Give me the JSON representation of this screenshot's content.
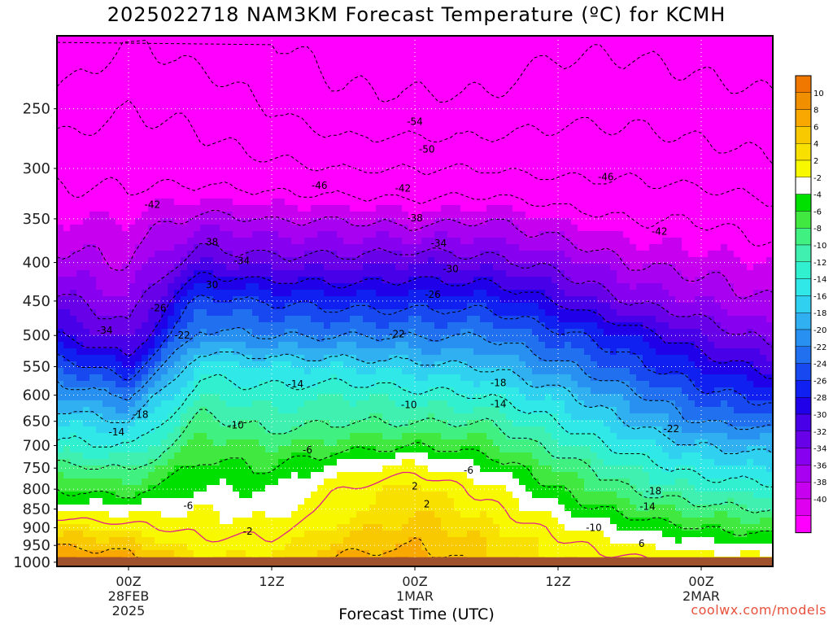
{
  "title": "2025022718 NAM3KM Forecast Temperature (ºC) for KCMH",
  "credit": "coolwx.com/models",
  "chart_data": {
    "type": "heatmap",
    "title": "2025022718 NAM3KM Forecast Temperature (ºC) for KCMH",
    "xlabel": "Forecast Time (UTC)",
    "ylabel": "",
    "x_ticks": [
      {
        "hour": 6,
        "lines": [
          "00Z",
          "28FEB",
          "2025"
        ]
      },
      {
        "hour": 18,
        "lines": [
          "12Z"
        ]
      },
      {
        "hour": 30,
        "lines": [
          "00Z",
          "1MAR"
        ]
      },
      {
        "hour": 42,
        "lines": [
          "12Z"
        ]
      },
      {
        "hour": 54,
        "lines": [
          "00Z",
          "2MAR"
        ]
      }
    ],
    "xlim": [
      0,
      60
    ],
    "y_ticks": [
      "250",
      "300",
      "350",
      "400",
      "450",
      "500",
      "550",
      "600",
      "650",
      "700",
      "750",
      "800",
      "850",
      "900",
      "950",
      "1000"
    ],
    "ylim": [
      200,
      1013
    ],
    "y_scale": "log-pressure",
    "grid": true,
    "colorbar": {
      "labels": [
        "10",
        "8",
        "6",
        "4",
        "2",
        "-2",
        "-4",
        "-6",
        "-8",
        "-10",
        "-12",
        "-14",
        "-16",
        "-18",
        "-20",
        "-22",
        "-24",
        "-26",
        "-28",
        "-30",
        "-32",
        "-34",
        "-36",
        "-38",
        "-40"
      ],
      "colors": [
        "#f07800",
        "#f09000",
        "#f8a800",
        "#f8c800",
        "#f8e000",
        "#f8f800",
        "#ffffff",
        "#00e000",
        "#40e840",
        "#40f080",
        "#40f0b0",
        "#30f0d0",
        "#30e8e8",
        "#30d0f0",
        "#30b0f0",
        "#2890f0",
        "#2070f0",
        "#1848f0",
        "#1020f0",
        "#2000e8",
        "#4800e8",
        "#6800e8",
        "#8800f0",
        "#a800f0",
        "#c800f0",
        "#e000f0",
        "#ff00ff"
      ]
    },
    "contour_labels": [
      {
        "text": "-54",
        "hour": 30,
        "p": 260
      },
      {
        "text": "-50",
        "hour": 31,
        "p": 283
      },
      {
        "text": "-46",
        "hour": 22,
        "p": 316
      },
      {
        "text": "-42",
        "hour": 29,
        "p": 319
      },
      {
        "text": "-46",
        "hour": 46,
        "p": 308
      },
      {
        "text": "-42",
        "hour": 8,
        "p": 335
      },
      {
        "text": "-38",
        "hour": 30,
        "p": 349
      },
      {
        "text": "-42",
        "hour": 50.5,
        "p": 364
      },
      {
        "text": "38",
        "hour": 13,
        "p": 376
      },
      {
        "text": "-34",
        "hour": 32,
        "p": 377
      },
      {
        "text": "-34",
        "hour": 15.5,
        "p": 398
      },
      {
        "text": "-30",
        "hour": 33,
        "p": 408
      },
      {
        "text": "30",
        "hour": 13,
        "p": 428
      },
      {
        "text": "-26",
        "hour": 31.5,
        "p": 441
      },
      {
        "text": "-26",
        "hour": 8.5,
        "p": 460
      },
      {
        "text": "-34",
        "hour": 4,
        "p": 492
      },
      {
        "text": "-22",
        "hour": 10.5,
        "p": 500
      },
      {
        "text": "-22",
        "hour": 28.5,
        "p": 498
      },
      {
        "text": "-14",
        "hour": 20,
        "p": 580
      },
      {
        "text": "-18",
        "hour": 37,
        "p": 578
      },
      {
        "text": "-10",
        "hour": 29.5,
        "p": 618
      },
      {
        "text": "-14",
        "hour": 37,
        "p": 617
      },
      {
        "text": "-18",
        "hour": 7,
        "p": 637
      },
      {
        "text": "-10",
        "hour": 15,
        "p": 658
      },
      {
        "text": "-14",
        "hour": 5,
        "p": 672
      },
      {
        "text": "-22",
        "hour": 51.5,
        "p": 665
      },
      {
        "text": "-6",
        "hour": 21,
        "p": 710
      },
      {
        "text": "-6",
        "hour": 34.5,
        "p": 755
      },
      {
        "text": "2",
        "hour": 30,
        "p": 793
      },
      {
        "text": "-18",
        "hour": 50,
        "p": 805
      },
      {
        "text": "2",
        "hour": 31,
        "p": 837
      },
      {
        "text": "-6",
        "hour": 11,
        "p": 842
      },
      {
        "text": "-14",
        "hour": 49.5,
        "p": 844
      },
      {
        "text": "-2",
        "hour": 16,
        "p": 910
      },
      {
        "text": "-10",
        "hour": 45,
        "p": 900
      },
      {
        "text": "6",
        "hour": 49,
        "p": 945
      }
    ]
  }
}
